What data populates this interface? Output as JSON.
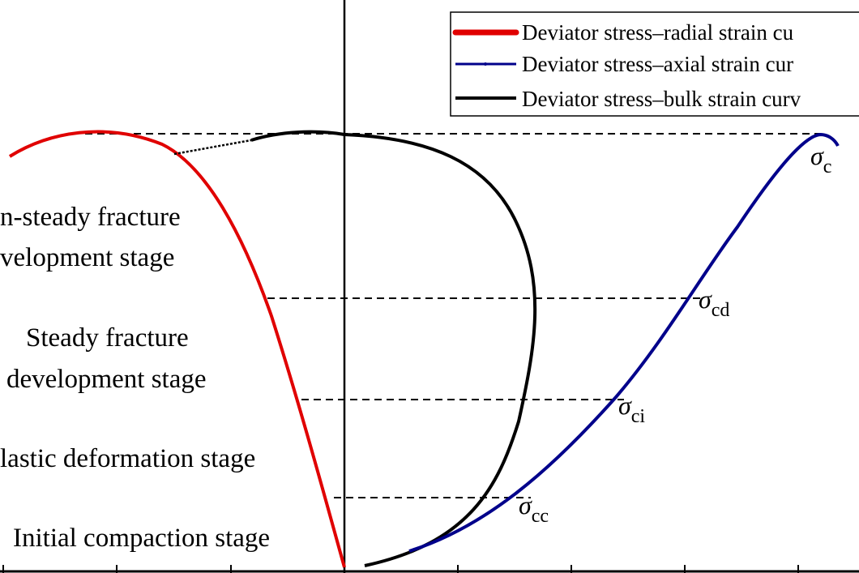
{
  "chart_data": {
    "type": "line",
    "title": "",
    "xlabel": "",
    "ylabel": "",
    "legend_position": "top-right",
    "series": [
      {
        "name": "Deviator stress–radial strain curve",
        "color": "#e00000"
      },
      {
        "name": "Deviator stress–axial strain curve",
        "color": "#00008b"
      },
      {
        "name": "Deviator stress–bulk strain curve",
        "color": "#000000"
      }
    ],
    "legend_labels": [
      "Deviator stress–radial strain cu",
      "Deviator stress–axial strain cur",
      "Deviator stress–bulk strain curv"
    ],
    "stages": [
      {
        "line1": "n-steady fracture",
        "line2": "velopment stage"
      },
      {
        "line1": "Steady fracture",
        "line2": "development stage"
      },
      {
        "line1": "lastic deformation stage",
        "line2": ""
      },
      {
        "line1": "Initial compaction stage",
        "line2": ""
      }
    ],
    "thresholds": [
      {
        "symbol": "σ",
        "subscript": "c"
      },
      {
        "symbol": "σ",
        "subscript": "cd"
      },
      {
        "symbol": "σ",
        "subscript": "ci"
      },
      {
        "symbol": "σ",
        "subscript": "cc"
      }
    ]
  }
}
